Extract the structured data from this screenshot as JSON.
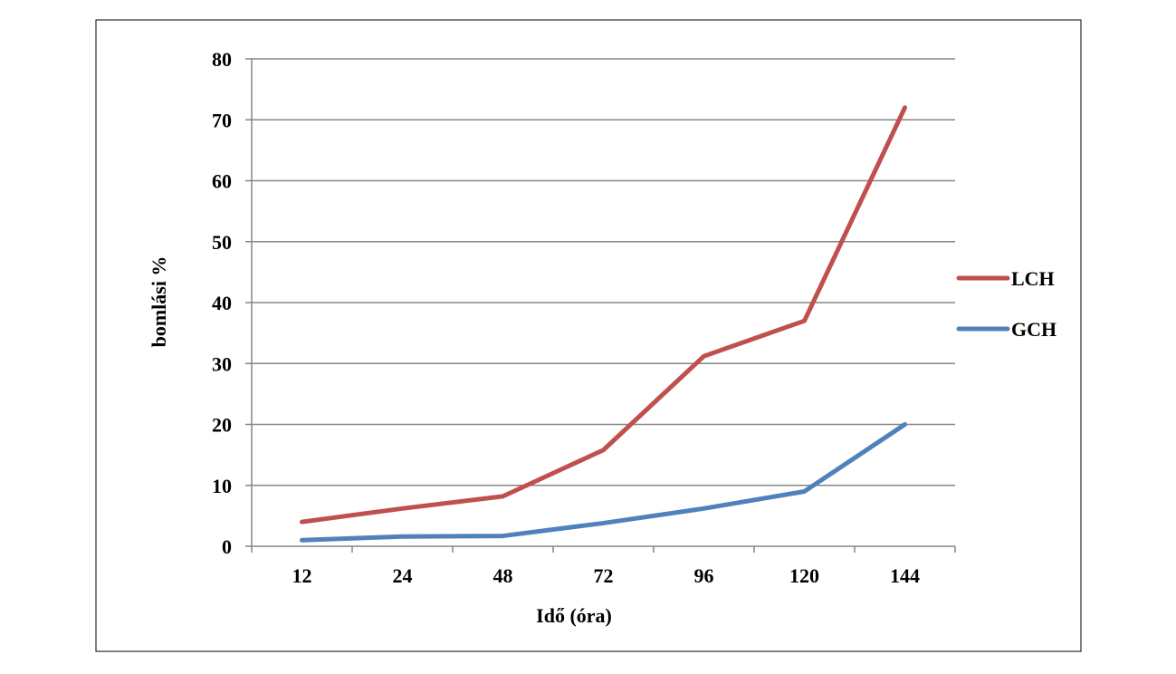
{
  "chart_data": {
    "type": "line",
    "title": "",
    "xlabel": "Idő (óra)",
    "ylabel": "bomlási %",
    "categories": [
      "12",
      "24",
      "48",
      "72",
      "96",
      "120",
      "144"
    ],
    "ylim": [
      0,
      80
    ],
    "yticks": [
      0,
      10,
      20,
      30,
      40,
      50,
      60,
      70,
      80
    ],
    "grid": true,
    "legend_position": "right",
    "series": [
      {
        "name": "LCH",
        "color": "#c0504d",
        "values": [
          4,
          6.2,
          8.2,
          15.8,
          31.2,
          37,
          72
        ]
      },
      {
        "name": "GCH",
        "color": "#4f81bd",
        "values": [
          1,
          1.6,
          1.7,
          3.8,
          6.2,
          9,
          20
        ]
      }
    ]
  }
}
